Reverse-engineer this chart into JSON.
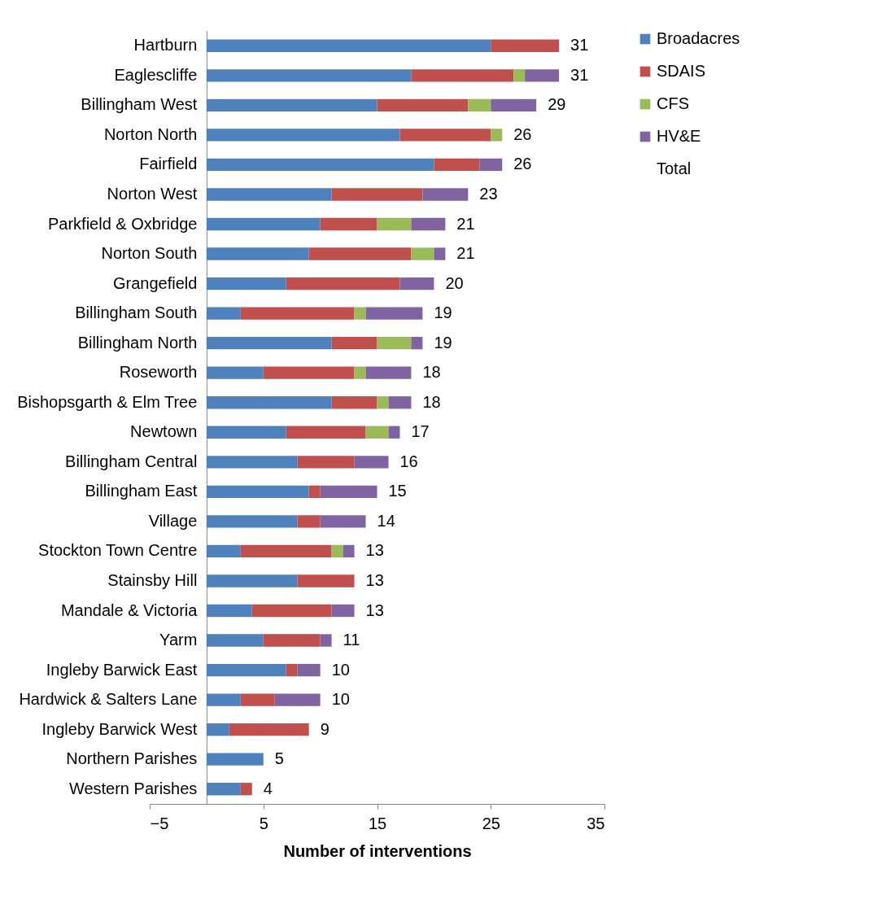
{
  "chart_data": {
    "type": "bar",
    "orientation": "horizontal",
    "stacked": true,
    "xlabel": "Number of interventions",
    "categories": [
      "Hartburn",
      "Eaglescliffe",
      "Billingham West",
      "Norton North",
      "Fairfield",
      "Norton West",
      "Parkfield & Oxbridge",
      "Norton South ",
      "Grangefield",
      "Billingham South",
      "Billingham North",
      "Roseworth",
      "Bishopsgarth & Elm Tree",
      "Newtown",
      "Billingham Central",
      "Billingham East",
      "Village",
      "Stockton Town Centre",
      "Stainsby Hill",
      "Mandale & Victoria",
      "Yarm ",
      "Ingleby Barwick East",
      "Hardwick & Salters Lane",
      "Ingleby Barwick West",
      "Northern Parishes",
      "Western Parishes"
    ],
    "series": [
      {
        "name": "Broadacres",
        "color": "#4f81bd",
        "values": [
          25,
          18,
          15,
          17,
          20,
          11,
          10,
          9,
          7,
          3,
          11,
          5,
          11,
          7,
          8,
          9,
          8,
          3,
          8,
          4,
          5,
          7,
          3,
          2,
          5,
          3
        ]
      },
      {
        "name": "SDAIS",
        "color": "#c0504d",
        "values": [
          6,
          9,
          8,
          8,
          4,
          8,
          5,
          9,
          10,
          10,
          4,
          8,
          4,
          7,
          5,
          1,
          2,
          8,
          5,
          7,
          5,
          1,
          3,
          7,
          0,
          1
        ]
      },
      {
        "name": "CFS",
        "color": "#9bbb59",
        "values": [
          0,
          1,
          2,
          1,
          0,
          0,
          3,
          2,
          0,
          1,
          3,
          1,
          1,
          2,
          0,
          0,
          0,
          1,
          0,
          0,
          0,
          0,
          0,
          0,
          0,
          0
        ]
      },
      {
        "name": "HV&E",
        "color": "#8064a2",
        "values": [
          0,
          3,
          4,
          0,
          2,
          4,
          3,
          1,
          3,
          5,
          1,
          4,
          2,
          1,
          3,
          5,
          4,
          1,
          0,
          2,
          1,
          2,
          4,
          0,
          0,
          0
        ]
      },
      {
        "name": "Total",
        "color": null,
        "values": [
          null,
          null,
          null,
          null,
          null,
          null,
          null,
          null,
          null,
          null,
          null,
          null,
          null,
          null,
          null,
          null,
          null,
          null,
          null,
          null,
          null,
          null,
          null,
          null,
          null,
          null
        ]
      }
    ],
    "totals": [
      "31",
      "31",
      "29",
      "26",
      "26",
      "23",
      "21",
      "21",
      "20",
      "19",
      "19",
      "18",
      "18",
      "17",
      "16",
      "15",
      "14",
      "13",
      "13",
      "13",
      "11",
      "10",
      "10",
      "9",
      "5",
      "4"
    ],
    "xlim": [
      -5,
      35
    ],
    "xticks": [
      -5,
      5,
      15,
      25,
      35
    ],
    "grid": false,
    "legend": "right"
  }
}
